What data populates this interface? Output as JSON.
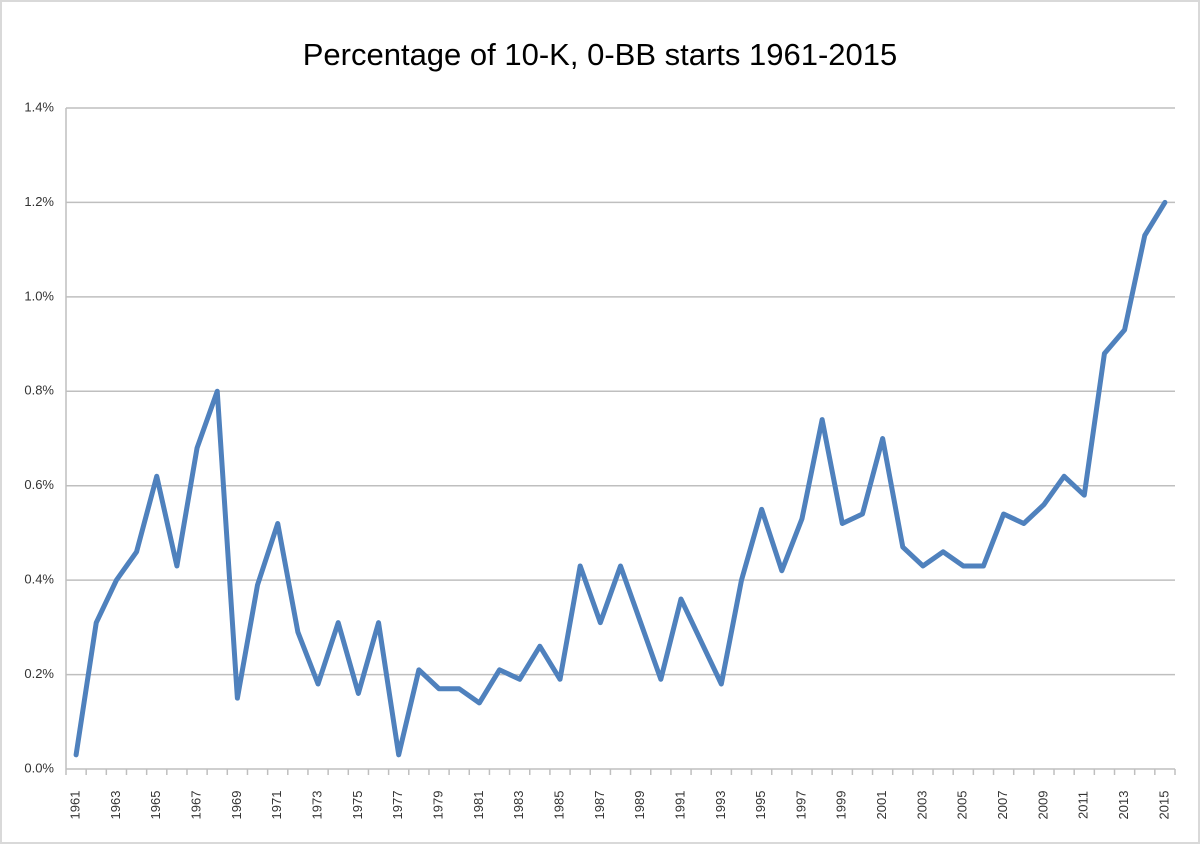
{
  "chart_data": {
    "type": "line",
    "title": "Percentage of 10-K, 0-BB starts 1961-2015",
    "categories": [
      "1961",
      null,
      "1963",
      null,
      "1965",
      null,
      "1967",
      null,
      "1969",
      null,
      "1971",
      null,
      "1973",
      null,
      "1975",
      null,
      "1977",
      null,
      "1979",
      null,
      "1981",
      null,
      "1983",
      null,
      "1985",
      null,
      "1987",
      null,
      "1989",
      null,
      "1991",
      null,
      "1993",
      null,
      "1995",
      null,
      "1997",
      null,
      "1999",
      null,
      "2001",
      null,
      "2003",
      null,
      "2005",
      null,
      "2007",
      null,
      "2009",
      null,
      "2011",
      null,
      "2013",
      null,
      "2015"
    ],
    "values": [
      0.03,
      0.31,
      0.4,
      0.46,
      0.62,
      0.43,
      0.68,
      0.8,
      0.15,
      0.39,
      0.52,
      0.29,
      0.18,
      0.31,
      0.16,
      0.31,
      0.03,
      0.21,
      0.17,
      0.17,
      0.14,
      0.21,
      0.19,
      0.26,
      0.19,
      0.43,
      0.31,
      0.43,
      0.31,
      0.19,
      0.36,
      0.27,
      0.18,
      0.4,
      0.55,
      0.42,
      0.53,
      0.74,
      0.52,
      0.54,
      0.7,
      0.47,
      0.43,
      0.46,
      0.43,
      0.43,
      0.54,
      0.52,
      0.56,
      0.62,
      0.58,
      0.88,
      0.93,
      1.13,
      1.2
    ],
    "color": "#4f81bd",
    "ylim": [
      0,
      1.4
    ],
    "yticks": [
      {
        "value": 0,
        "label": "0.0%"
      },
      {
        "value": 0.2,
        "label": "0.2%"
      },
      {
        "value": 0.4,
        "label": "0.4%"
      },
      {
        "value": 0.6,
        "label": "0.6%"
      },
      {
        "value": 0.8,
        "label": "0.8%"
      },
      {
        "value": 1.0,
        "label": "1.0%"
      },
      {
        "value": 1.2,
        "label": "1.2%"
      },
      {
        "value": 1.4,
        "label": "1.4%"
      }
    ],
    "grid": true
  }
}
